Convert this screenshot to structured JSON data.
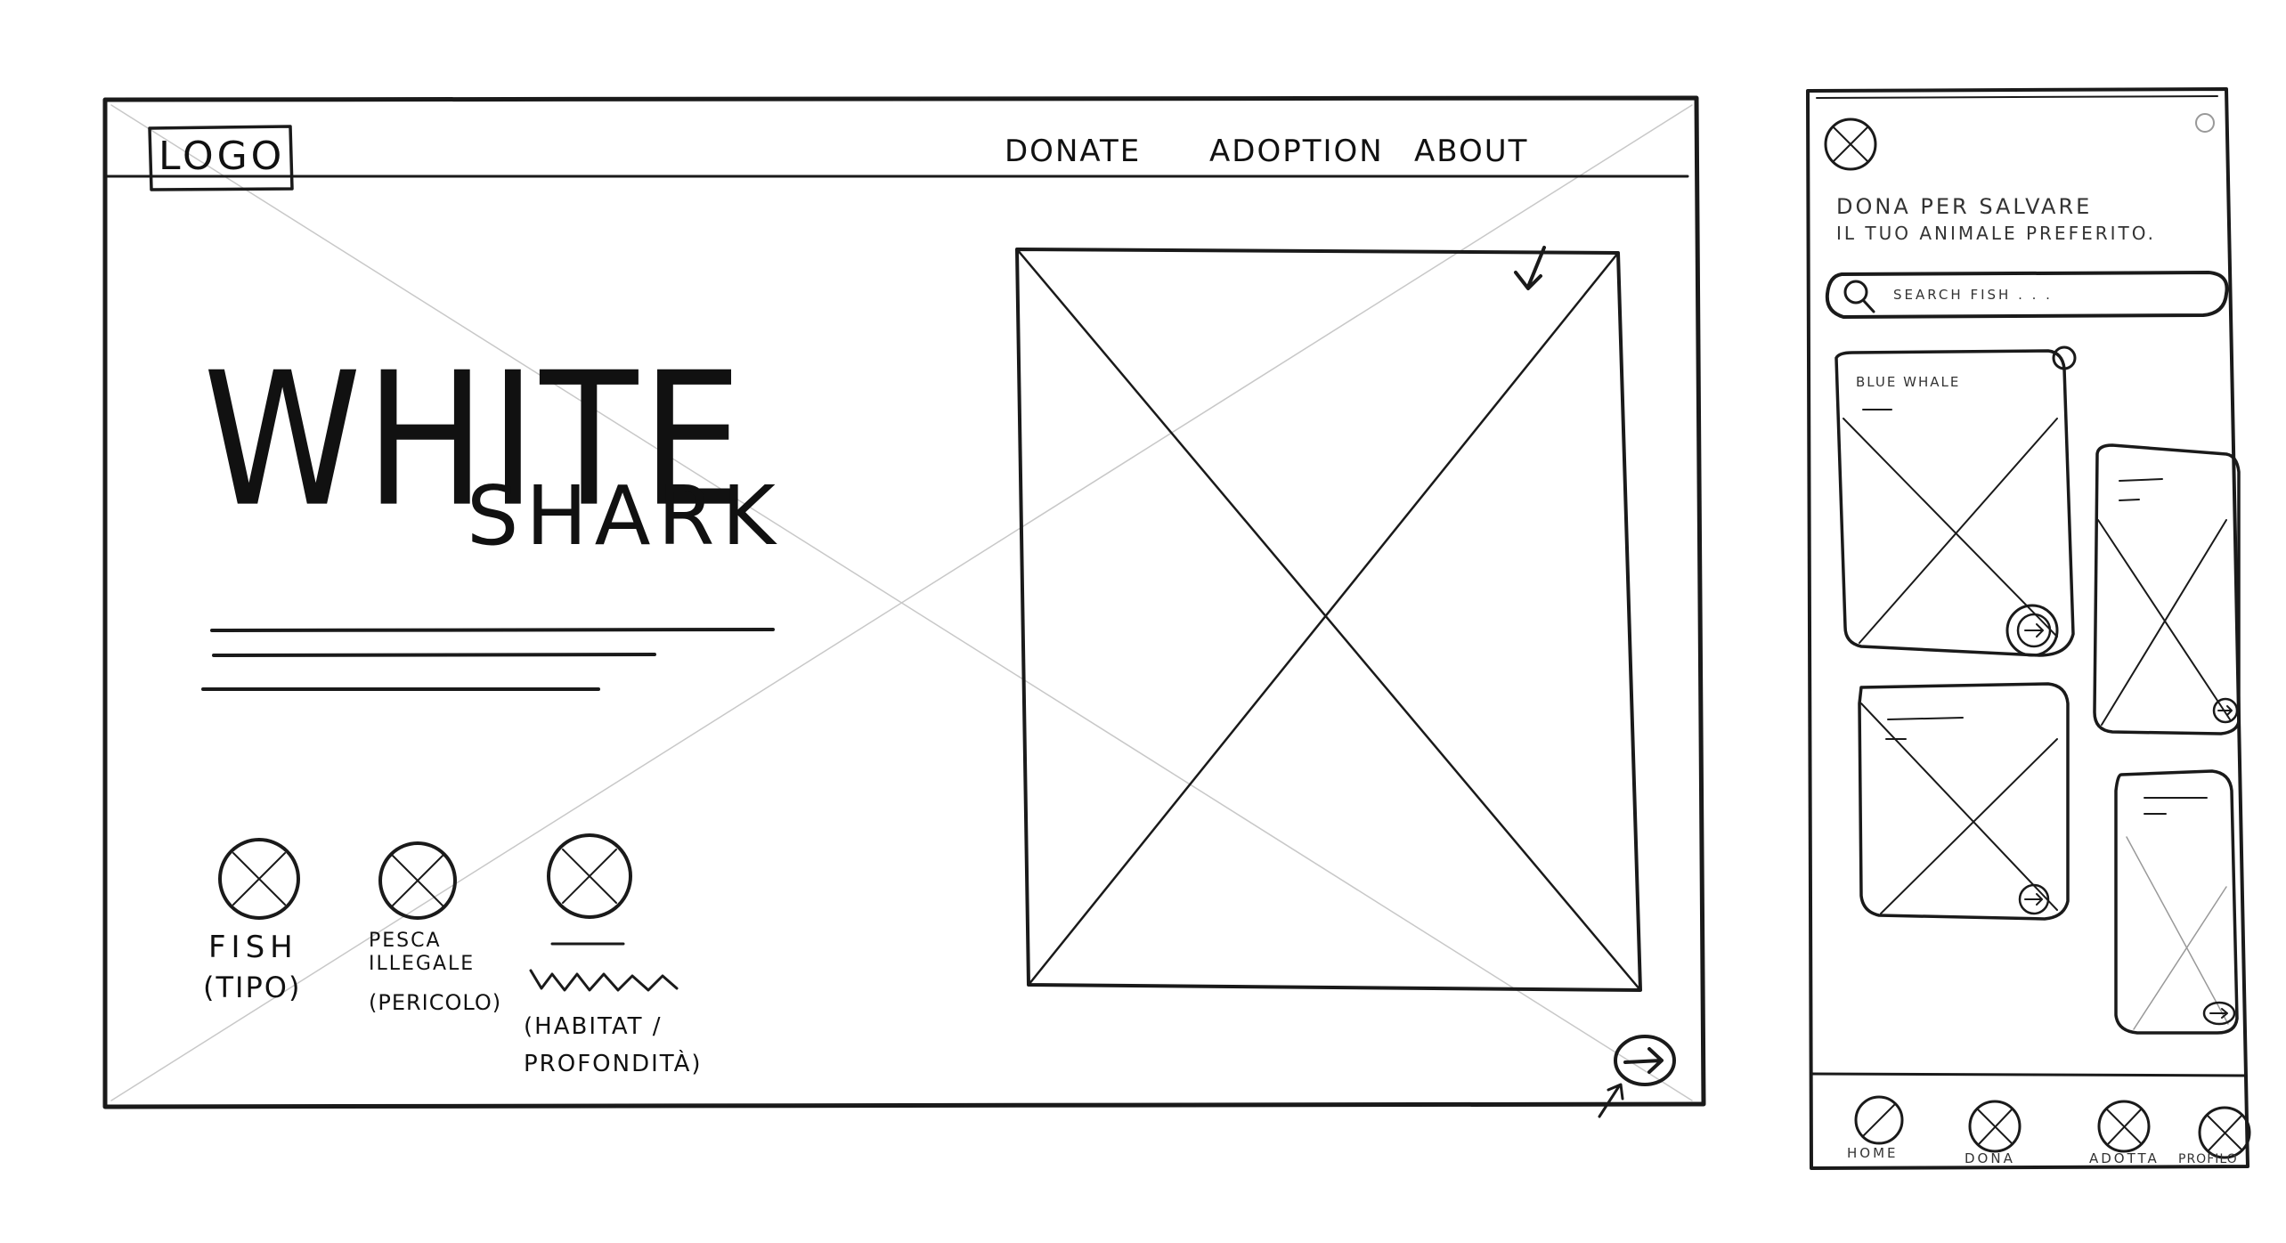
{
  "desktop": {
    "logo": "LOGO",
    "nav": [
      "DONATE",
      "ADOPTION",
      "ABOUT"
    ],
    "hero_title_line1": "WHITE",
    "hero_title_line2": "SHARK",
    "info_items": [
      {
        "label": "FISH",
        "sub": "(TIPO)"
      },
      {
        "label": "PESCA ILLEGALE",
        "sub": "(PERICOLO)"
      },
      {
        "label": "",
        "sub": "(HABITAT / PROFONDITÀ)"
      }
    ]
  },
  "mobile": {
    "tagline_line1": "DONA PER SALVARE",
    "tagline_line2": "IL TUO ANIMALE PREFERITO.",
    "search_placeholder": "SEARCH FISH . . .",
    "first_card_title": "BLUE WHALE",
    "bottom_nav": [
      "HOME",
      "DONA",
      "ADOTTA",
      "PROFILO"
    ]
  },
  "colors": {
    "ink": "#1a1a1a",
    "faint": "#bbbbbb"
  }
}
